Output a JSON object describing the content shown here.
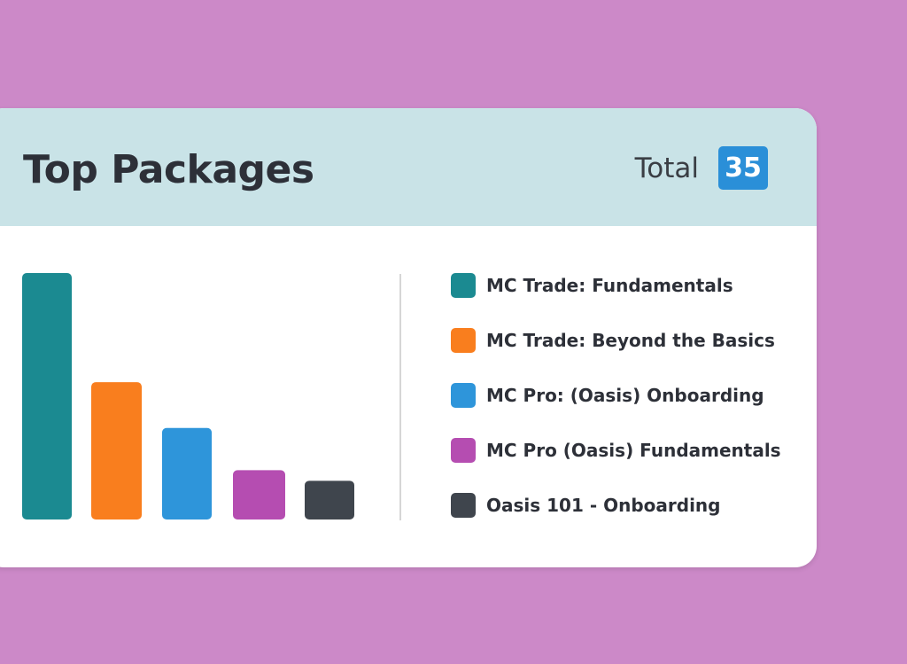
{
  "card": {
    "title": "Top Packages",
    "total_label": "Total",
    "total_value": "35"
  },
  "colors": {
    "background": "#CC89C8",
    "header_bg": "#C9E3E7",
    "badge": "#2A8FD8"
  },
  "chart_data": {
    "type": "bar",
    "categories": [
      "MC Trade: Fundamentals",
      "MC Trade: Beyond the Basics",
      "MC Pro: (Oasis) Onboarding",
      "MC Pro (Oasis) Fundamentals",
      "Oasis 101 - Onboarding"
    ],
    "values": [
      14,
      7.8,
      5.2,
      2.8,
      2.2
    ],
    "colors": [
      "#1B8A91",
      "#F97E1E",
      "#2E95DA",
      "#B54DB1",
      "#3F454D"
    ],
    "grid": false,
    "legend_position": "right"
  }
}
